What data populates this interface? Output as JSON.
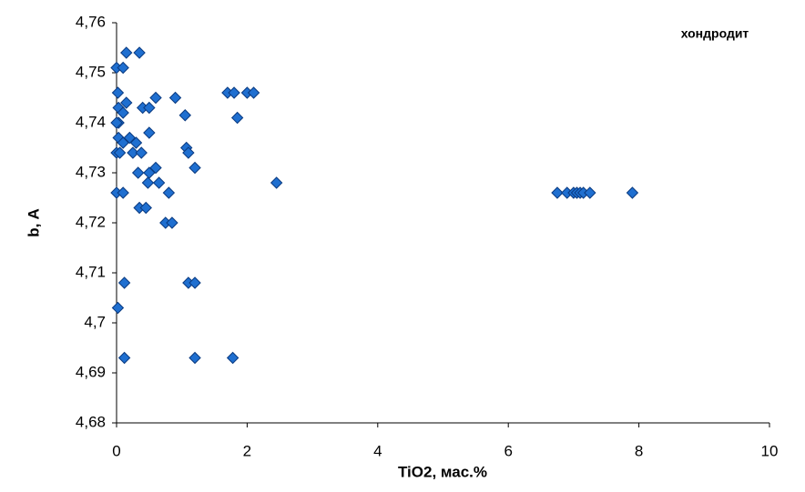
{
  "chart_data": {
    "type": "scatter",
    "annotation": "хондродит",
    "xlabel": "TiO2, мас.%",
    "ylabel": "b, A",
    "color": "#1f6fd0",
    "x": [
      0,
      0.1,
      0.15,
      0.35,
      0.02,
      0.15,
      0.6,
      0.9,
      1.7,
      1.8,
      2.0,
      2.1,
      1.05,
      1.85,
      0.4,
      0.5,
      0.03,
      0.1,
      0.03,
      0,
      0.5,
      0.03,
      0.2,
      0.1,
      0.3,
      1.07,
      1.1,
      0,
      0.05,
      0.25,
      0.38,
      0.6,
      1.2,
      0.33,
      0.5,
      0.48,
      0.65,
      2.45,
      0,
      0.1,
      0.8,
      6.75,
      6.9,
      7.0,
      7.05,
      7.1,
      7.15,
      7.25,
      7.9,
      0.35,
      0.45,
      0.75,
      0.85,
      0.12,
      1.1,
      1.2,
      0.02,
      0.12,
      1.2,
      1.78
    ],
    "values": [
      4.751,
      4.751,
      4.754,
      4.754,
      4.746,
      4.744,
      4.745,
      4.745,
      4.746,
      4.746,
      4.746,
      4.746,
      4.7415,
      4.741,
      4.743,
      4.743,
      4.743,
      4.742,
      4.74,
      4.74,
      4.738,
      4.737,
      4.737,
      4.736,
      4.736,
      4.735,
      4.734,
      4.734,
      4.734,
      4.734,
      4.734,
      4.731,
      4.731,
      4.73,
      4.73,
      4.728,
      4.728,
      4.728,
      4.726,
      4.726,
      4.726,
      4.726,
      4.726,
      4.726,
      4.726,
      4.726,
      4.726,
      4.726,
      4.726,
      4.723,
      4.723,
      4.72,
      4.72,
      4.708,
      4.708,
      4.708,
      4.703,
      4.693,
      4.693,
      4.693
    ],
    "xlim": [
      0,
      10
    ],
    "xticks": [
      0,
      2,
      4,
      6,
      8,
      10
    ],
    "ylim": [
      4.68,
      4.76
    ],
    "yticks": [
      {
        "value": 4.68,
        "label": "4,68"
      },
      {
        "value": 4.69,
        "label": "4,69"
      },
      {
        "value": 4.7,
        "label": "4,7"
      },
      {
        "value": 4.71,
        "label": "4,71"
      },
      {
        "value": 4.72,
        "label": "4,72"
      },
      {
        "value": 4.73,
        "label": "4,73"
      },
      {
        "value": 4.74,
        "label": "4,74"
      },
      {
        "value": 4.75,
        "label": "4,75"
      },
      {
        "value": 4.76,
        "label": "4,76"
      }
    ]
  }
}
